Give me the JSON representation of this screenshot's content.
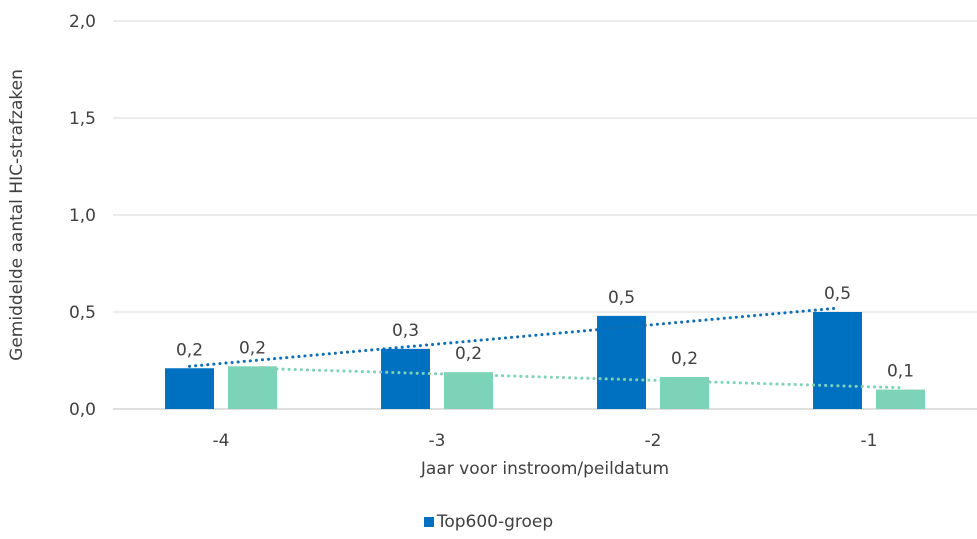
{
  "chart_data": {
    "type": "bar",
    "xlabel": "Jaar voor instroom/peildatum",
    "ylabel": "Gemiddelde aantal HIC-strafzaken",
    "ylim": [
      0,
      2.0
    ],
    "yticks": [
      "0,0",
      "0,5",
      "1,0",
      "1,5",
      "2,0"
    ],
    "ytick_values": [
      0,
      0.5,
      1.0,
      1.5,
      2.0
    ],
    "categories": [
      "-4",
      "-3",
      "-2",
      "-1"
    ],
    "grid": true,
    "legend_position": "bottom",
    "series": [
      {
        "name": "Top600-groep",
        "color": "#0070C0",
        "values": [
          0.21,
          0.31,
          0.48,
          0.5
        ],
        "labels": [
          "0,2",
          "0,3",
          "0,5",
          "0,5"
        ],
        "trendline": {
          "style": "dotted",
          "color": "#0F6FB5",
          "start": 0.22,
          "end": 0.52
        }
      },
      {
        "color": "#7DD3B7",
        "values": [
          0.22,
          0.19,
          0.165,
          0.1
        ],
        "labels": [
          "0,2",
          "0,2",
          "0,2",
          "0,1"
        ],
        "trendline": {
          "style": "dotted",
          "color": "#7DD3B7",
          "start": 0.21,
          "end": 0.11
        }
      }
    ]
  }
}
